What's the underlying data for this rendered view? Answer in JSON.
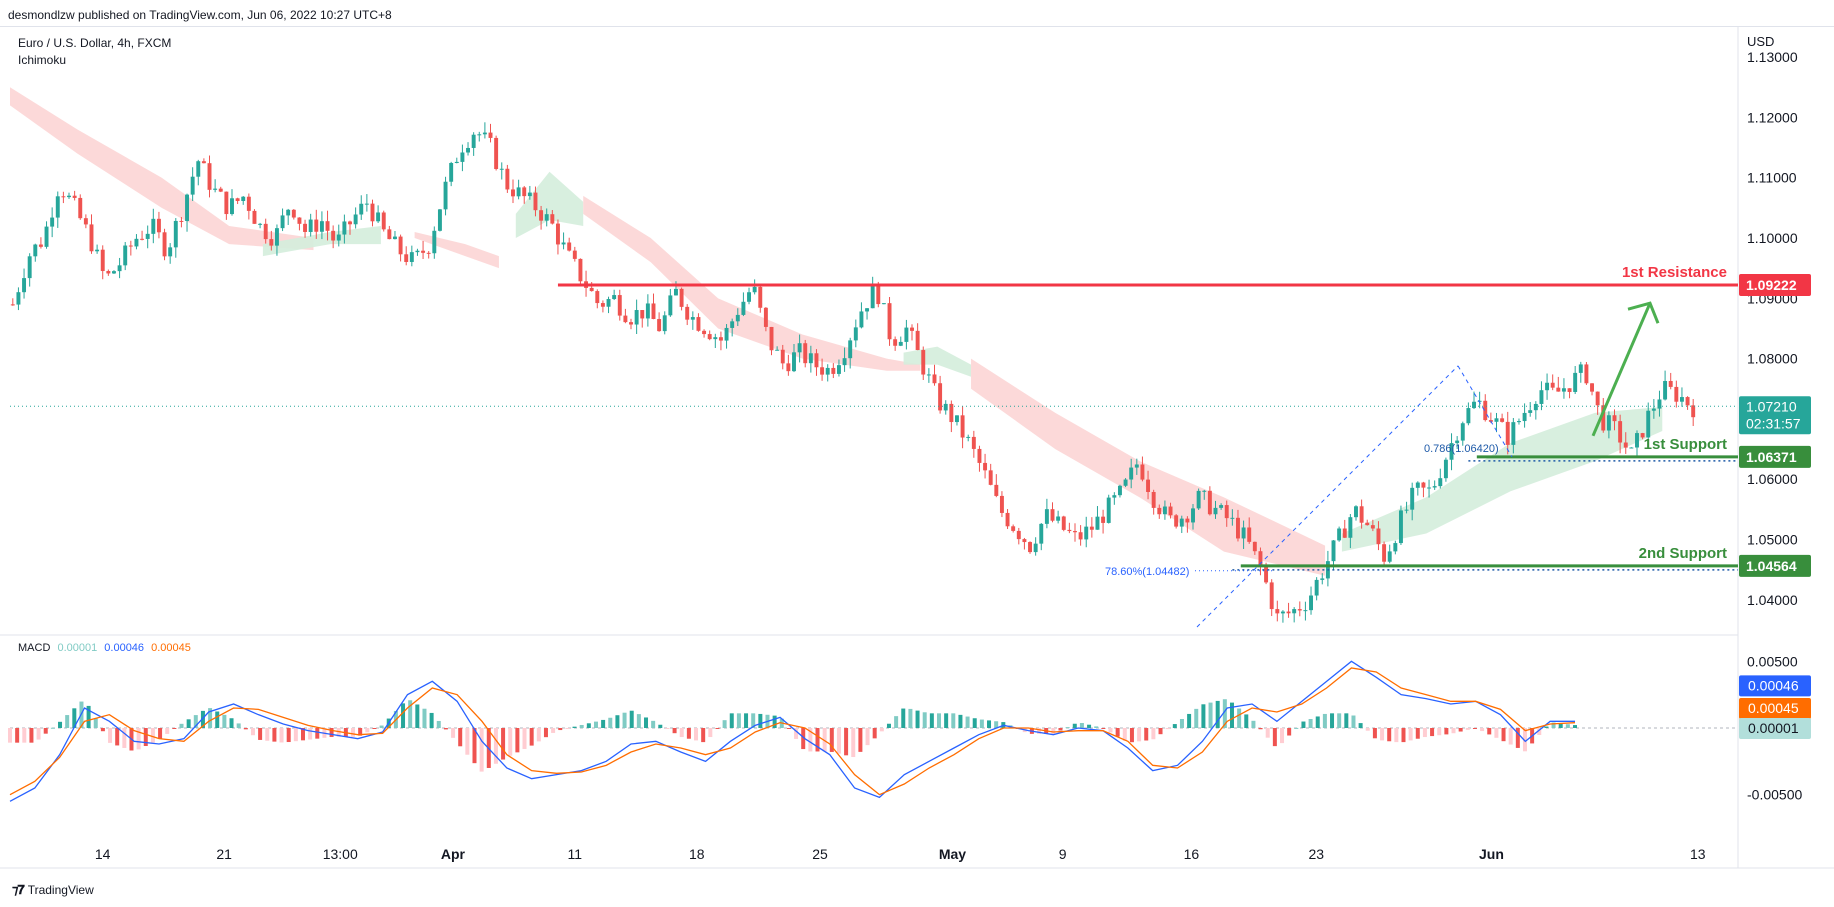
{
  "header": {
    "published": "desmondlzw published on TradingView.com, Jun 06, 2022 10:27 UTC+8"
  },
  "legend": {
    "symbol": "Euro / U.S. Dollar, 4h, FXCM",
    "indicator": "Ichimoku"
  },
  "macd_legend": {
    "label": "MACD",
    "hist": "0.00001",
    "macd": "0.00046",
    "signal": "0.00045"
  },
  "footer": {
    "brand": "TradingView"
  },
  "colors": {
    "up": "#26a69a",
    "down": "#ef5350",
    "resistance": "#f23645",
    "support": "#388e3c",
    "macd_line": "#2962ff",
    "signal_line": "#ff6d00",
    "cloud_bear": "#fcd5d5",
    "cloud_bull": "#d4eddb",
    "arrow": "#4caf50"
  },
  "chart_data": {
    "type": "candlestick",
    "currency": "USD",
    "price_axis": {
      "ticks": [
        "1.13000",
        "1.12000",
        "1.11000",
        "1.10000",
        "1.09000",
        "1.08000",
        "1.07000",
        "1.06000",
        "1.05000",
        "1.04000"
      ],
      "tick_values": [
        1.13,
        1.12,
        1.11,
        1.1,
        1.09,
        1.08,
        1.07,
        1.06,
        1.05,
        1.04
      ]
    },
    "time_axis": [
      "14",
      "21",
      "13:00",
      "Apr",
      "11",
      "18",
      "25",
      "May",
      "9",
      "16",
      "23",
      "Jun",
      "13"
    ],
    "current_price": "1.07210",
    "countdown": "02:31:57",
    "levels": [
      {
        "name": "1st Resistance",
        "value": 1.09222,
        "label": "1.09222"
      },
      {
        "name": "1st Support",
        "value": 1.06371,
        "label": "1.06371"
      },
      {
        "name": "2nd Support",
        "value": 1.04564,
        "label": "1.04564"
      }
    ],
    "fib_labels": [
      {
        "text": "0.786(1.06420)",
        "value": 1.0642
      },
      {
        "text": "78.60%(1.04482)",
        "value": 1.04482
      }
    ],
    "price_path": [
      1.089,
      1.097,
      1.1,
      1.109,
      1.105,
      1.1,
      1.093,
      1.096,
      1.1,
      1.102,
      1.098,
      1.105,
      1.113,
      1.108,
      1.105,
      1.107,
      1.102,
      1.1,
      1.106,
      1.101,
      1.103,
      1.099,
      1.103,
      1.106,
      1.101,
      1.098,
      1.096,
      1.099,
      1.108,
      1.115,
      1.118,
      1.115,
      1.109,
      1.107,
      1.105,
      1.102,
      1.097,
      1.093,
      1.089,
      1.09,
      1.087,
      1.088,
      1.085,
      1.091,
      1.087,
      1.085,
      1.083,
      1.088,
      1.092,
      1.083,
      1.079,
      1.081,
      1.079,
      1.078,
      1.082,
      1.088,
      1.092,
      1.083,
      1.085,
      1.079,
      1.073,
      1.07,
      1.066,
      1.061,
      1.055,
      1.052,
      1.049,
      1.054,
      1.052,
      1.05,
      1.052,
      1.055,
      1.058,
      1.063,
      1.057,
      1.053,
      1.054,
      1.057,
      1.055,
      1.053,
      1.05,
      1.045,
      1.037,
      1.038,
      1.04,
      1.045,
      1.05,
      1.055,
      1.052,
      1.047,
      1.053,
      1.058,
      1.058,
      1.064,
      1.07,
      1.073,
      1.07,
      1.067,
      1.071,
      1.075,
      1.074,
      1.076,
      1.078,
      1.07,
      1.068,
      1.064,
      1.07,
      1.075,
      1.074,
      1.072
    ],
    "cloud_segments": [
      {
        "kind": "bear",
        "top": [
          [
            0,
            1.125
          ],
          [
            0.04,
            1.118
          ],
          [
            0.09,
            1.11
          ],
          [
            0.13,
            1.102
          ],
          [
            0.18,
            1.1
          ]
        ],
        "bottom": [
          [
            0,
            1.122
          ],
          [
            0.04,
            1.114
          ],
          [
            0.09,
            1.105
          ],
          [
            0.13,
            1.099
          ],
          [
            0.18,
            1.098
          ]
        ]
      },
      {
        "kind": "bull",
        "top": [
          [
            0.15,
            1.099
          ],
          [
            0.19,
            1.101
          ],
          [
            0.22,
            1.102
          ]
        ],
        "bottom": [
          [
            0.15,
            1.097
          ],
          [
            0.19,
            1.099
          ],
          [
            0.22,
            1.099
          ]
        ]
      },
      {
        "kind": "bear",
        "top": [
          [
            0.24,
            1.101
          ],
          [
            0.27,
            1.099
          ],
          [
            0.29,
            1.097
          ]
        ],
        "bottom": [
          [
            0.24,
            1.1
          ],
          [
            0.27,
            1.097
          ],
          [
            0.29,
            1.095
          ]
        ]
      },
      {
        "kind": "bull",
        "top": [
          [
            0.3,
            1.104
          ],
          [
            0.32,
            1.111
          ],
          [
            0.34,
            1.106
          ]
        ],
        "bottom": [
          [
            0.3,
            1.1
          ],
          [
            0.32,
            1.103
          ],
          [
            0.34,
            1.102
          ]
        ]
      },
      {
        "kind": "bear",
        "top": [
          [
            0.34,
            1.107
          ],
          [
            0.38,
            1.1
          ],
          [
            0.42,
            1.09
          ],
          [
            0.47,
            1.084
          ],
          [
            0.52,
            1.08
          ],
          [
            0.54,
            1.079
          ]
        ],
        "bottom": [
          [
            0.34,
            1.104
          ],
          [
            0.38,
            1.096
          ],
          [
            0.42,
            1.085
          ],
          [
            0.47,
            1.08
          ],
          [
            0.52,
            1.078
          ],
          [
            0.54,
            1.078
          ]
        ]
      },
      {
        "kind": "bull",
        "top": [
          [
            0.53,
            1.081
          ],
          [
            0.55,
            1.082
          ],
          [
            0.57,
            1.079
          ]
        ],
        "bottom": [
          [
            0.53,
            1.079
          ],
          [
            0.55,
            1.079
          ],
          [
            0.57,
            1.077
          ]
        ]
      },
      {
        "kind": "bear",
        "top": [
          [
            0.57,
            1.08
          ],
          [
            0.62,
            1.071
          ],
          [
            0.67,
            1.063
          ],
          [
            0.72,
            1.057
          ],
          [
            0.78,
            1.049
          ]
        ],
        "bottom": [
          [
            0.57,
            1.075
          ],
          [
            0.62,
            1.065
          ],
          [
            0.67,
            1.057
          ],
          [
            0.72,
            1.048
          ],
          [
            0.78,
            1.044
          ]
        ]
      },
      {
        "kind": "bull",
        "top": [
          [
            0.79,
            1.051
          ],
          [
            0.84,
            1.057
          ],
          [
            0.89,
            1.066
          ],
          [
            0.94,
            1.071
          ],
          [
            0.98,
            1.072
          ]
        ],
        "bottom": [
          [
            0.79,
            1.048
          ],
          [
            0.84,
            1.051
          ],
          [
            0.89,
            1.058
          ],
          [
            0.94,
            1.063
          ],
          [
            0.98,
            1.068
          ]
        ]
      }
    ],
    "macd": {
      "axis_ticks": [
        "0.00500",
        "-0.00500"
      ],
      "axis_values": [
        0.005,
        -0.005
      ],
      "zero_marker": "0.00001",
      "macd_label": "0.00046",
      "signal_label": "0.00045",
      "hist_label": "0.00001",
      "macd_path": [
        -0.0055,
        -0.0045,
        -0.002,
        0.0015,
        0.0005,
        -0.001,
        -0.0012,
        -0.0008,
        0.0012,
        0.0018,
        0.001,
        0.0003,
        -0.0002,
        -0.0005,
        -0.0008,
        -0.0003,
        0.0025,
        0.0035,
        0.002,
        -0.001,
        -0.003,
        -0.0038,
        -0.0035,
        -0.0032,
        -0.0025,
        -0.0012,
        -0.001,
        -0.0018,
        -0.0025,
        -0.001,
        0.0002,
        0.0008,
        -0.0008,
        -0.002,
        -0.0045,
        -0.0052,
        -0.0035,
        -0.0025,
        -0.0015,
        -0.0005,
        0.0002,
        -0.0002,
        -0.0005,
        0.0,
        -0.0002,
        -0.0015,
        -0.0032,
        -0.0028,
        -0.001,
        0.0015,
        0.0018,
        0.0005,
        0.002,
        0.0035,
        0.005,
        0.0038,
        0.0025,
        0.0022,
        0.0018,
        0.002,
        0.001,
        -0.001,
        0.0005,
        0.0005
      ],
      "signal_path": [
        -0.005,
        -0.004,
        -0.0022,
        0.0005,
        0.001,
        -0.0002,
        -0.0008,
        -0.001,
        0.0005,
        0.0015,
        0.0014,
        0.0008,
        0.0002,
        -0.0002,
        -0.0005,
        -0.0004,
        0.0015,
        0.003,
        0.0025,
        0.0005,
        -0.002,
        -0.0032,
        -0.0034,
        -0.0033,
        -0.0028,
        -0.0018,
        -0.0012,
        -0.0015,
        -0.002,
        -0.0015,
        -0.0003,
        0.0004,
        0.0,
        -0.0012,
        -0.0035,
        -0.005,
        -0.0042,
        -0.003,
        -0.002,
        -0.0008,
        0.0,
        0.0,
        -0.0003,
        -0.0002,
        -0.0002,
        -0.001,
        -0.0028,
        -0.003,
        -0.0018,
        0.0005,
        0.0015,
        0.0012,
        0.0018,
        0.003,
        0.0045,
        0.0042,
        0.003,
        0.0025,
        0.002,
        0.002,
        0.0014,
        -0.0002,
        0.0003,
        0.0004
      ]
    }
  }
}
